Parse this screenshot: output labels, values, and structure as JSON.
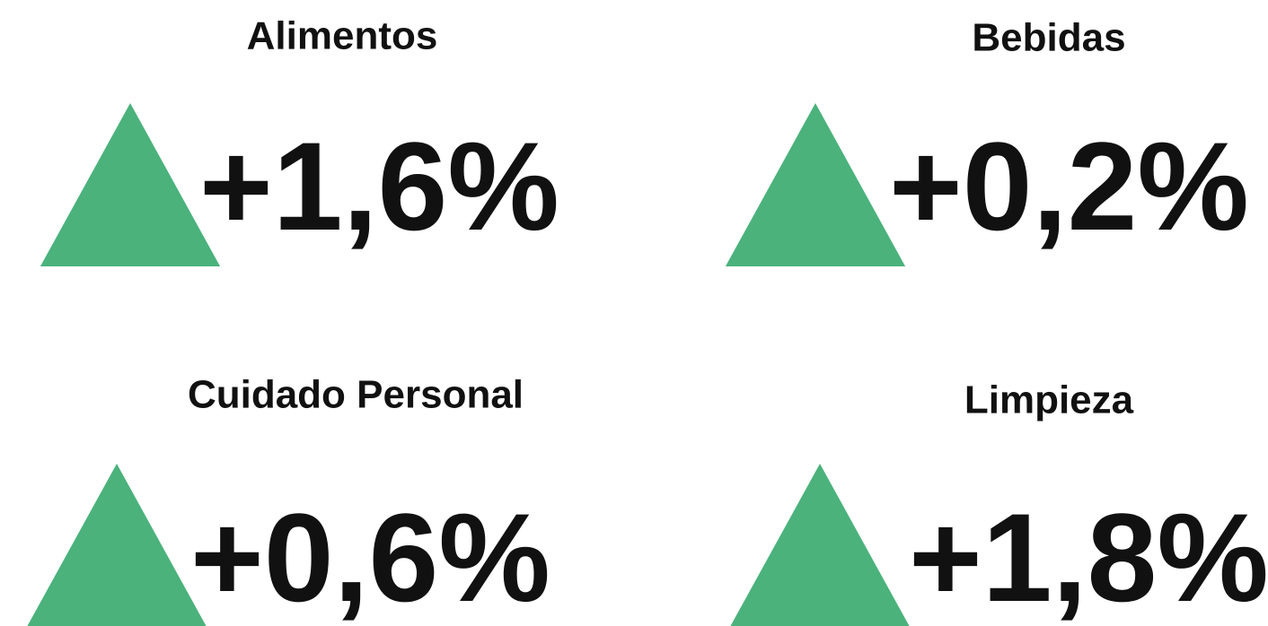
{
  "cards": [
    {
      "title": "Alimentos",
      "value": "+1,6%"
    },
    {
      "title": "Bebidas",
      "value": "+0,2%"
    },
    {
      "title": "Cuidado Personal",
      "value": "+0,6%"
    },
    {
      "title": "Limpieza",
      "value": "+1,8%"
    }
  ]
}
